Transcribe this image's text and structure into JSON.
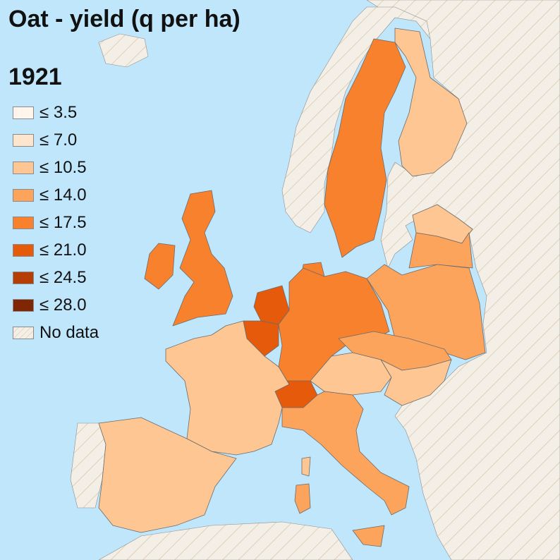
{
  "title": "Oat - yield (q per ha)",
  "year": "1921",
  "colors": {
    "sea": "#bfe6fb",
    "nodata_fill": "#f4efe6",
    "nodata_hatch": "#ddd0b8",
    "border": "#6b6b6b"
  },
  "legend": [
    {
      "label": "≤ 3.5",
      "color": "#fff5eb"
    },
    {
      "label": "≤ 7.0",
      "color": "#fee6ce"
    },
    {
      "label": "≤ 10.5",
      "color": "#fdc692"
    },
    {
      "label": "≤ 14.0",
      "color": "#fca35c"
    },
    {
      "label": "≤ 17.5",
      "color": "#f8812d"
    },
    {
      "label": "≤ 21.0",
      "color": "#e55a0b"
    },
    {
      "label": "≤ 24.5",
      "color": "#b53e04"
    },
    {
      "label": "≤ 28.0",
      "color": "#7f2704"
    },
    {
      "label": "No data",
      "nodata": true
    }
  ],
  "countries": [
    {
      "name": "Finland",
      "class": "≤ 10.5"
    },
    {
      "name": "Sweden",
      "class": "≤ 17.5"
    },
    {
      "name": "Great Britain",
      "class": "≤ 17.5"
    },
    {
      "name": "Ireland",
      "class": "≤ 17.5"
    },
    {
      "name": "Netherlands",
      "class": "≤ 21.0"
    },
    {
      "name": "Belgium",
      "class": "≤ 21.0"
    },
    {
      "name": "Germany",
      "class": "≤ 17.5"
    },
    {
      "name": "Poland",
      "class": "≤ 14.0"
    },
    {
      "name": "Latvia",
      "class": "≤ 10.5"
    },
    {
      "name": "Lithuania",
      "class": "≤ 14.0"
    },
    {
      "name": "Czechoslovakia",
      "class": "≤ 14.0"
    },
    {
      "name": "Austria",
      "class": "≤ 10.5"
    },
    {
      "name": "Hungary",
      "class": "≤ 10.5"
    },
    {
      "name": "Switzerland",
      "class": "≤ 21.0"
    },
    {
      "name": "France",
      "class": "≤ 10.5"
    },
    {
      "name": "Spain",
      "class": "≤ 10.5"
    },
    {
      "name": "Italy",
      "class": "≤ 14.0"
    },
    {
      "name": "Denmark",
      "class": "≤ 17.5"
    }
  ]
}
